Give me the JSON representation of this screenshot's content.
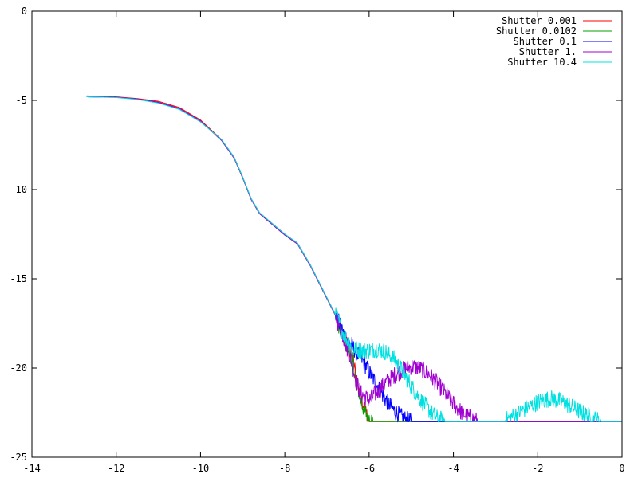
{
  "chart_data": {
    "type": "line",
    "title": "",
    "xlabel": "",
    "ylabel": "",
    "xlim": [
      -14,
      0
    ],
    "ylim": [
      -25,
      0
    ],
    "x_ticks": [
      -14,
      -12,
      -10,
      -8,
      -6,
      -4,
      -2,
      0
    ],
    "y_ticks": [
      0,
      -5,
      -10,
      -15,
      -20,
      -25
    ],
    "x_tick_labels": [
      "-14",
      "-12",
      "-10",
      "-8",
      "-6",
      "-4",
      "-2",
      "0"
    ],
    "y_tick_labels": [
      "0",
      "-5",
      "-10",
      "-15",
      "-20",
      "-25"
    ],
    "grid": false,
    "legend_position": "top-right",
    "floor": -23,
    "series": [
      {
        "name": "Shutter 0.001",
        "color": "#ff0000",
        "points": [
          [
            -12.7,
            -4.75
          ],
          [
            -12.0,
            -4.8
          ],
          [
            -11.5,
            -4.9
          ],
          [
            -11.0,
            -5.05
          ],
          [
            -10.5,
            -5.4
          ],
          [
            -10.0,
            -6.1
          ],
          [
            -9.5,
            -7.2
          ],
          [
            -9.2,
            -8.2
          ],
          [
            -9.0,
            -9.3
          ],
          [
            -8.8,
            -10.5
          ],
          [
            -8.6,
            -11.3
          ],
          [
            -8.3,
            -11.9
          ],
          [
            -8.0,
            -12.5
          ],
          [
            -7.7,
            -13.0
          ],
          [
            -7.4,
            -14.2
          ],
          [
            -7.1,
            -15.6
          ],
          [
            -6.8,
            -17.0
          ],
          [
            -6.6,
            -18.3
          ],
          [
            -6.4,
            -19.4
          ],
          [
            -6.3,
            -20.5
          ],
          [
            -6.2,
            -21.5
          ],
          [
            -6.1,
            -22.3
          ],
          [
            -6.0,
            -23.0
          ],
          [
            0.0,
            -23.0
          ]
        ]
      },
      {
        "name": "Shutter 0.0102",
        "color": "#00a000",
        "points": [
          [
            -12.7,
            -4.8
          ],
          [
            -12.0,
            -4.82
          ],
          [
            -11.5,
            -4.92
          ],
          [
            -11.0,
            -5.1
          ],
          [
            -10.5,
            -5.45
          ],
          [
            -10.0,
            -6.15
          ],
          [
            -9.5,
            -7.25
          ],
          [
            -9.2,
            -8.25
          ],
          [
            -9.0,
            -9.35
          ],
          [
            -8.8,
            -10.55
          ],
          [
            -8.6,
            -11.35
          ],
          [
            -8.3,
            -11.95
          ],
          [
            -8.0,
            -12.55
          ],
          [
            -7.7,
            -13.05
          ],
          [
            -7.4,
            -14.25
          ],
          [
            -7.1,
            -15.65
          ],
          [
            -6.8,
            -17.05
          ],
          [
            -6.6,
            -18.35
          ],
          [
            -6.4,
            -19.5
          ],
          [
            -6.3,
            -20.7
          ],
          [
            -6.2,
            -21.8
          ],
          [
            -6.1,
            -22.5
          ],
          [
            -5.9,
            -23.0
          ],
          [
            0.0,
            -23.0
          ]
        ]
      },
      {
        "name": "Shutter 0.1",
        "color": "#0000ff",
        "points": [
          [
            -12.7,
            -4.8
          ],
          [
            -12.0,
            -4.83
          ],
          [
            -11.5,
            -4.93
          ],
          [
            -11.0,
            -5.12
          ],
          [
            -10.5,
            -5.5
          ],
          [
            -10.0,
            -6.2
          ],
          [
            -9.5,
            -7.2
          ],
          [
            -9.2,
            -8.2
          ],
          [
            -9.0,
            -9.3
          ],
          [
            -8.8,
            -10.5
          ],
          [
            -8.6,
            -11.3
          ],
          [
            -8.3,
            -11.9
          ],
          [
            -8.0,
            -12.5
          ],
          [
            -7.7,
            -13.0
          ],
          [
            -7.4,
            -14.2
          ],
          [
            -7.1,
            -15.6
          ],
          [
            -6.8,
            -17.0
          ],
          [
            -6.6,
            -18.1
          ],
          [
            -6.4,
            -18.8
          ],
          [
            -6.2,
            -19.4
          ],
          [
            -6.0,
            -20.2
          ],
          [
            -5.8,
            -21.0
          ],
          [
            -5.6,
            -21.8
          ],
          [
            -5.4,
            -22.4
          ],
          [
            -5.2,
            -22.8
          ],
          [
            -5.0,
            -23.0
          ],
          [
            0.0,
            -23.0
          ]
        ]
      },
      {
        "name": "Shutter 1.",
        "color": "#a000d0",
        "points": [
          [
            -12.7,
            -4.78
          ],
          [
            -12.0,
            -4.82
          ],
          [
            -11.5,
            -4.92
          ],
          [
            -11.0,
            -5.1
          ],
          [
            -10.5,
            -5.45
          ],
          [
            -10.0,
            -6.15
          ],
          [
            -9.5,
            -7.25
          ],
          [
            -9.2,
            -8.25
          ],
          [
            -9.0,
            -9.35
          ],
          [
            -8.8,
            -10.55
          ],
          [
            -8.6,
            -11.35
          ],
          [
            -8.3,
            -11.95
          ],
          [
            -8.0,
            -12.55
          ],
          [
            -7.7,
            -13.05
          ],
          [
            -7.4,
            -14.25
          ],
          [
            -7.1,
            -15.65
          ],
          [
            -6.8,
            -17.05
          ],
          [
            -6.6,
            -18.3
          ],
          [
            -6.4,
            -19.8
          ],
          [
            -6.3,
            -20.8
          ],
          [
            -6.2,
            -21.4
          ],
          [
            -6.0,
            -21.8
          ],
          [
            -5.8,
            -21.3
          ],
          [
            -5.6,
            -20.8
          ],
          [
            -5.4,
            -20.4
          ],
          [
            -5.2,
            -20.1
          ],
          [
            -5.0,
            -19.9
          ],
          [
            -4.8,
            -20.0
          ],
          [
            -4.6,
            -20.3
          ],
          [
            -4.4,
            -20.8
          ],
          [
            -4.2,
            -21.4
          ],
          [
            -4.0,
            -22.0
          ],
          [
            -3.8,
            -22.5
          ],
          [
            -3.6,
            -22.8
          ],
          [
            -3.4,
            -23.0
          ],
          [
            0.0,
            -23.0
          ]
        ]
      },
      {
        "name": "Shutter 10.4",
        "color": "#00e0e0",
        "points": [
          [
            -12.7,
            -4.8
          ],
          [
            -12.0,
            -4.84
          ],
          [
            -11.5,
            -4.95
          ],
          [
            -11.0,
            -5.15
          ],
          [
            -10.5,
            -5.5
          ],
          [
            -10.0,
            -6.2
          ],
          [
            -9.5,
            -7.2
          ],
          [
            -9.2,
            -8.2
          ],
          [
            -9.0,
            -9.3
          ],
          [
            -8.8,
            -10.5
          ],
          [
            -8.6,
            -11.3
          ],
          [
            -8.3,
            -11.9
          ],
          [
            -8.0,
            -12.5
          ],
          [
            -7.7,
            -13.0
          ],
          [
            -7.4,
            -14.2
          ],
          [
            -7.1,
            -15.6
          ],
          [
            -6.8,
            -17.0
          ],
          [
            -6.6,
            -18.1
          ],
          [
            -6.4,
            -18.9
          ],
          [
            -6.2,
            -19.0
          ],
          [
            -6.0,
            -19.0
          ],
          [
            -5.8,
            -18.9
          ],
          [
            -5.6,
            -19.1
          ],
          [
            -5.4,
            -19.5
          ],
          [
            -5.2,
            -20.2
          ],
          [
            -5.0,
            -21.0
          ],
          [
            -4.8,
            -21.7
          ],
          [
            -4.6,
            -22.3
          ],
          [
            -4.4,
            -22.8
          ],
          [
            -4.2,
            -23.0
          ],
          [
            -2.8,
            -23.0
          ],
          [
            -2.6,
            -22.7
          ],
          [
            -2.3,
            -22.3
          ],
          [
            -2.0,
            -21.9
          ],
          [
            -1.7,
            -21.7
          ],
          [
            -1.4,
            -21.9
          ],
          [
            -1.1,
            -22.3
          ],
          [
            -0.8,
            -22.7
          ],
          [
            -0.5,
            -23.0
          ],
          [
            0.0,
            -23.0
          ]
        ]
      }
    ]
  }
}
